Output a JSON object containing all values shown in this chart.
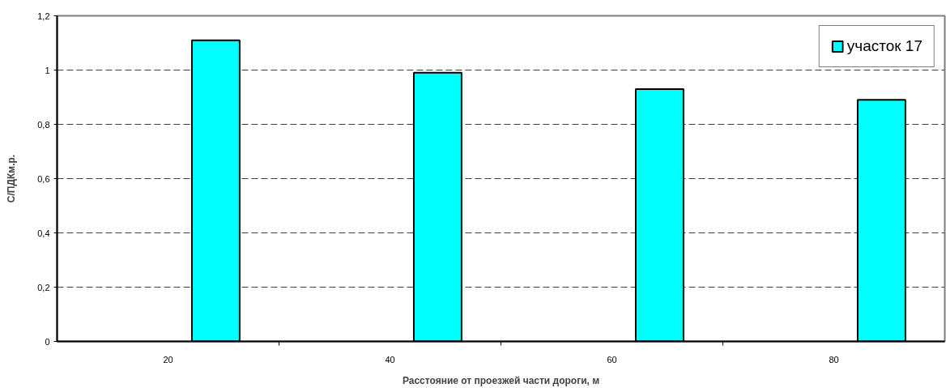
{
  "chart_data": {
    "type": "bar",
    "xlabel": "Расстояние от проезжей части дороги, м",
    "ylabel": "С/ПДКм.р.",
    "categories": [
      "20",
      "40",
      "60",
      "80"
    ],
    "series": [
      {
        "name": "участок 17",
        "color": "#00ffff",
        "values": [
          1.11,
          0.99,
          0.93,
          0.89
        ]
      }
    ],
    "ylim": [
      0,
      1.2
    ],
    "yticks": [
      0,
      {
        "value": 0.2,
        "label": "0,2"
      },
      {
        "value": 0.4,
        "label": "0,4"
      },
      {
        "value": 0.6,
        "label": "0,6"
      },
      {
        "value": 0.8,
        "label": "0,8"
      },
      1,
      {
        "value": 1.2,
        "label": "1,2"
      }
    ],
    "grid": "y",
    "legend": "top right"
  }
}
